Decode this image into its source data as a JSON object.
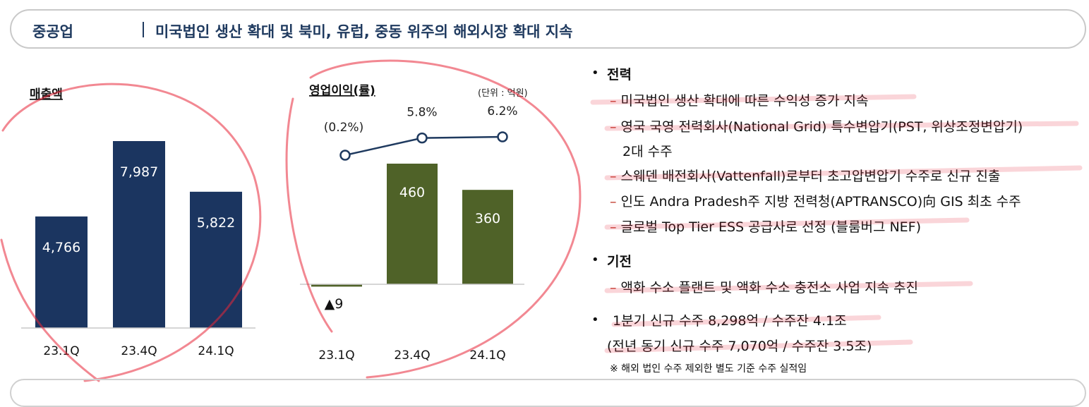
{
  "header": {
    "sector": "중공업",
    "title": "미국법인 생산 확대 및 북미, 유럽, 중동 위주의 해외시장 확대 지속"
  },
  "chart_data": [
    {
      "type": "bar",
      "title": "매출액",
      "categories": [
        "23.1Q",
        "23.4Q",
        "24.1Q"
      ],
      "values": [
        4766,
        7987,
        5822
      ],
      "labels": [
        "4,766",
        "7,987",
        "5,822"
      ],
      "color": "#1b3560"
    },
    {
      "type": "bar+line",
      "title": "영업이익(률)",
      "unit": "(단위 : 억원)",
      "categories": [
        "23.1Q",
        "23.4Q",
        "24.1Q"
      ],
      "series": [
        {
          "values": [
            -9,
            460,
            360
          ],
          "labels": [
            "▲9",
            "460",
            "360"
          ],
          "color": "#4f6228"
        },
        {
          "values": [
            -0.2,
            5.8,
            6.2
          ],
          "labels": [
            "(0.2%)",
            "5.8%",
            "6.2%"
          ],
          "color": "#1f3a5f"
        }
      ]
    }
  ],
  "bullets": {
    "power": {
      "heading": "전력",
      "items": [
        "미국법인 생산 확대에 따른 수익성 증가 지속",
        "영국 국영 전력회사(National Grid) 특수변압기(PST, 위상조정변압기)",
        "2대 수주",
        "스웨덴 배전회사(Vattenfall)로부터 초고압변압기 수주로 신규 진출",
        "인도 Andra Pradesh주 지방 전력청(APTRANSCO)向 GIS 최초 수주",
        "글로벌 Top Tier ESS 공급사로 선정 (블룸버그 NEF)"
      ]
    },
    "machinery": {
      "heading": "기전",
      "items": [
        "액화 수소 플랜트 및 액화 수소 충전소 사업 지속 추진"
      ]
    },
    "orders": {
      "line1": "1분기 신규 수주 8,298억 / 수주잔 4.1조",
      "line2": "(전년 동기 신규 수주 7,070억 / 수주잔 3.5조)",
      "note": "※  해외 법인 수주 제외한 별도 기준 수주 실적임"
    },
    "dash": "–",
    "dot": "•"
  },
  "annotation_color": "#e8273a"
}
